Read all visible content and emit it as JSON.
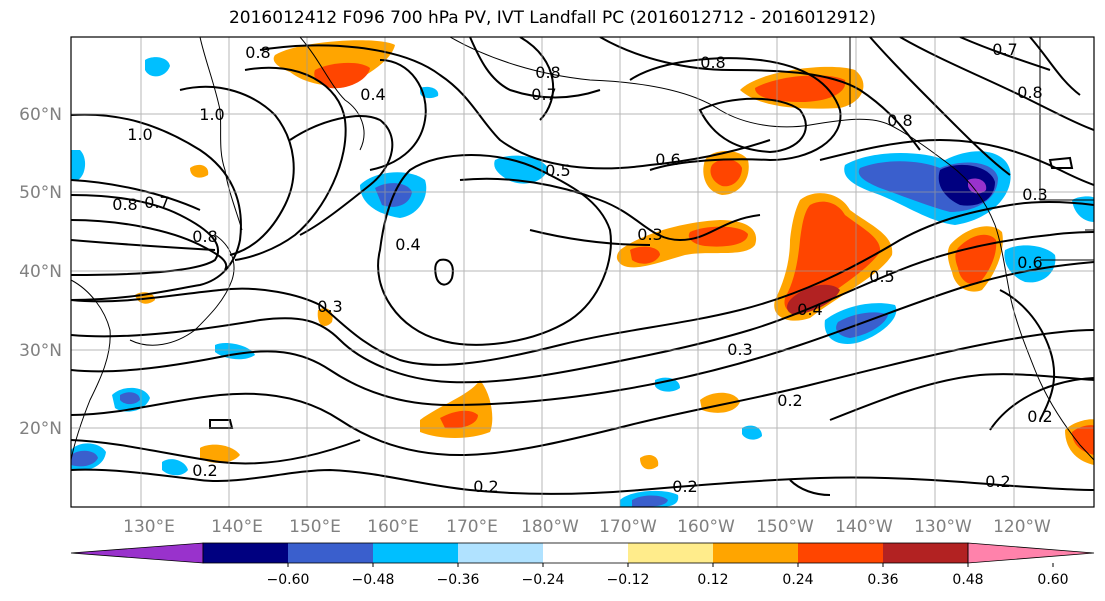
{
  "chart_data": {
    "type": "contour-map",
    "title": "2016012412 F096 700 hPa PV, IVT Landfall PC (2016012712 - 2016012912)",
    "lon_ticks": [
      "130°E",
      "140°E",
      "150°E",
      "160°E",
      "170°E",
      "180°W",
      "170°W",
      "160°W",
      "150°W",
      "140°W",
      "130°W",
      "120°W"
    ],
    "lat_ticks": [
      "60°N",
      "50°N",
      "40°N",
      "30°N",
      "20°N"
    ],
    "colorbar": {
      "ticks": [
        "−0.60",
        "−0.48",
        "−0.36",
        "−0.24",
        "−0.12",
        "0.12",
        "0.24",
        "0.36",
        "0.48",
        "0.60"
      ],
      "colors": [
        "#9932cc",
        "#000080",
        "#3a5fcd",
        "#00bfff",
        "#b0e2ff",
        "#ffffff",
        "#ffec8b",
        "#ffa500",
        "#ff4500",
        "#b22222",
        "#ff82ab"
      ],
      "extend": "both"
    },
    "contour_labels": [
      "0.8",
      "0.4",
      "0.8",
      "0.7",
      "0.8",
      "0.7",
      "1.0",
      "1.0",
      "0.8",
      "0.7",
      "0.8",
      "0.5",
      "0.6",
      "0.8",
      "0.8",
      "0.4",
      "0.3",
      "0.3",
      "0.4",
      "0.5",
      "0.3",
      "0.2",
      "0.2",
      "0.2",
      "0.2",
      "0.2",
      "0.2",
      "0.6",
      "0.3"
    ],
    "grid": true
  }
}
